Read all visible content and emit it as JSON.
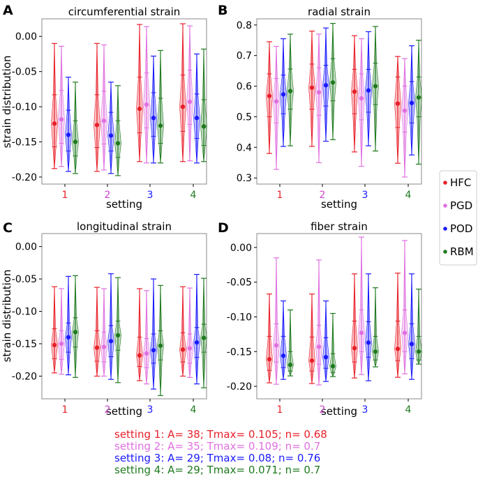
{
  "settings": [
    "1",
    "2",
    "3",
    "4"
  ],
  "methods": [
    "HFC",
    "PGD",
    "POD",
    "RBM"
  ],
  "colors": {
    "HFC": "#e8202a",
    "PGD": "#e070e0",
    "POD": "#1a1aff",
    "RBM": "#1f7a1f",
    "settings": [
      "#e8202a",
      "#cc44cc",
      "#1a1aff",
      "#1f7a1f"
    ]
  },
  "xlabel": "setting",
  "ylabel": "strain distribution",
  "legend": {
    "placement": "right",
    "entries": [
      "HFC",
      "PGD",
      "POD",
      "RBM"
    ]
  },
  "chart_data": [
    {
      "type": "violin",
      "panel": "A",
      "title": "circumferential strain",
      "ylim": [
        -0.21,
        0.025
      ],
      "yticks": [
        0.0,
        -0.05,
        -0.1,
        -0.15,
        -0.2
      ],
      "ytick_labels": [
        "0.00",
        "-0.05",
        "-0.10",
        "-0.15",
        "-0.20"
      ],
      "series": [
        {
          "name": "HFC",
          "median": [
            -0.124,
            -0.126,
            -0.103,
            -0.1
          ],
          "min": [
            -0.188,
            -0.192,
            -0.178,
            -0.178
          ],
          "max": [
            -0.01,
            -0.01,
            0.017,
            0.018
          ],
          "q1": [
            -0.157,
            -0.158,
            -0.137,
            -0.135
          ],
          "q3": [
            -0.083,
            -0.083,
            -0.058,
            -0.055
          ]
        },
        {
          "name": "PGD",
          "median": [
            -0.118,
            -0.12,
            -0.097,
            -0.093
          ],
          "min": [
            -0.185,
            -0.19,
            -0.18,
            -0.177
          ],
          "max": [
            -0.014,
            -0.012,
            0.014,
            0.015
          ],
          "q1": [
            -0.152,
            -0.153,
            -0.13,
            -0.125
          ],
          "q3": [
            -0.077,
            -0.078,
            -0.052,
            -0.048
          ]
        },
        {
          "name": "POD",
          "median": [
            -0.14,
            -0.141,
            -0.116,
            -0.116
          ],
          "min": [
            -0.192,
            -0.195,
            -0.18,
            -0.18
          ],
          "max": [
            -0.058,
            -0.065,
            -0.028,
            -0.025
          ],
          "q1": [
            -0.163,
            -0.163,
            -0.142,
            -0.145
          ],
          "q3": [
            -0.105,
            -0.108,
            -0.08,
            -0.082
          ]
        },
        {
          "name": "RBM",
          "median": [
            -0.15,
            -0.152,
            -0.127,
            -0.128
          ],
          "min": [
            -0.195,
            -0.198,
            -0.18,
            -0.178
          ],
          "max": [
            -0.065,
            -0.07,
            -0.02,
            -0.018
          ],
          "q1": [
            -0.17,
            -0.172,
            -0.152,
            -0.155
          ],
          "q3": [
            -0.12,
            -0.12,
            -0.088,
            -0.09
          ]
        }
      ]
    },
    {
      "type": "violin",
      "panel": "B",
      "title": "radial strain",
      "ylim": [
        0.28,
        0.82
      ],
      "yticks": [
        0.8,
        0.7,
        0.6,
        0.5,
        0.4,
        0.3
      ],
      "ytick_labels": [
        "0.8",
        "0.7",
        "0.6",
        "0.5",
        "0.4",
        "0.3"
      ],
      "series": [
        {
          "name": "HFC",
          "median": [
            0.568,
            0.595,
            0.582,
            0.543
          ],
          "min": [
            0.38,
            0.403,
            0.385,
            0.348
          ],
          "max": [
            0.745,
            0.78,
            0.765,
            0.697
          ],
          "q1": [
            0.5,
            0.525,
            0.51,
            0.465
          ],
          "q3": [
            0.64,
            0.672,
            0.655,
            0.63
          ]
        },
        {
          "name": "PGD",
          "median": [
            0.55,
            0.58,
            0.56,
            0.52
          ],
          "min": [
            0.328,
            0.35,
            0.338,
            0.303
          ],
          "max": [
            0.73,
            0.77,
            0.755,
            0.69
          ],
          "q1": [
            0.48,
            0.505,
            0.49,
            0.45
          ],
          "q3": [
            0.625,
            0.66,
            0.64,
            0.6
          ]
        },
        {
          "name": "POD",
          "median": [
            0.573,
            0.603,
            0.586,
            0.545
          ],
          "min": [
            0.403,
            0.42,
            0.405,
            0.375
          ],
          "max": [
            0.755,
            0.79,
            0.778,
            0.732
          ],
          "q1": [
            0.51,
            0.535,
            0.515,
            0.48
          ],
          "q3": [
            0.636,
            0.668,
            0.655,
            0.615
          ]
        },
        {
          "name": "RBM",
          "median": [
            0.584,
            0.612,
            0.6,
            0.563
          ],
          "min": [
            0.405,
            0.425,
            0.388,
            0.345
          ],
          "max": [
            0.77,
            0.805,
            0.795,
            0.75
          ],
          "q1": [
            0.525,
            0.552,
            0.54,
            0.5
          ],
          "q3": [
            0.656,
            0.69,
            0.675,
            0.63
          ]
        }
      ]
    },
    {
      "type": "violin",
      "panel": "C",
      "title": "longitudinal strain",
      "ylim": [
        -0.235,
        0.02
      ],
      "yticks": [
        0.0,
        -0.05,
        -0.1,
        -0.15,
        -0.2
      ],
      "ytick_labels": [
        "0.00",
        "-0.05",
        "-0.10",
        "-0.15",
        "-0.20"
      ],
      "series": [
        {
          "name": "HFC",
          "median": [
            -0.152,
            -0.156,
            -0.168,
            -0.159
          ],
          "min": [
            -0.195,
            -0.2,
            -0.207,
            -0.2
          ],
          "max": [
            -0.062,
            -0.063,
            -0.065,
            -0.062
          ],
          "q1": [
            -0.173,
            -0.177,
            -0.185,
            -0.178
          ],
          "q3": [
            -0.127,
            -0.13,
            -0.14,
            -0.133
          ]
        },
        {
          "name": "PGD",
          "median": [
            -0.15,
            -0.155,
            -0.165,
            -0.157
          ],
          "min": [
            -0.197,
            -0.2,
            -0.212,
            -0.202
          ],
          "max": [
            -0.065,
            -0.065,
            -0.068,
            -0.064
          ],
          "q1": [
            -0.174,
            -0.178,
            -0.187,
            -0.18
          ],
          "q3": [
            -0.13,
            -0.132,
            -0.142,
            -0.135
          ]
        },
        {
          "name": "POD",
          "median": [
            -0.14,
            -0.146,
            -0.16,
            -0.148
          ],
          "min": [
            -0.198,
            -0.205,
            -0.22,
            -0.212
          ],
          "max": [
            -0.046,
            -0.042,
            -0.05,
            -0.043
          ],
          "q1": [
            -0.163,
            -0.17,
            -0.18,
            -0.171
          ],
          "q3": [
            -0.118,
            -0.122,
            -0.135,
            -0.125
          ]
        },
        {
          "name": "RBM",
          "median": [
            -0.132,
            -0.137,
            -0.153,
            -0.141
          ],
          "min": [
            -0.202,
            -0.21,
            -0.23,
            -0.218
          ],
          "max": [
            -0.045,
            -0.048,
            -0.06,
            -0.049
          ],
          "q1": [
            -0.155,
            -0.16,
            -0.175,
            -0.163
          ],
          "q3": [
            -0.11,
            -0.115,
            -0.13,
            -0.12
          ]
        }
      ]
    },
    {
      "type": "violin",
      "panel": "D",
      "title": "fiber strain",
      "ylim": [
        -0.218,
        0.02
      ],
      "yticks": [
        0.0,
        -0.05,
        -0.1,
        -0.15,
        -0.2
      ],
      "ytick_labels": [
        "0.00",
        "-0.05",
        "-0.10",
        "-0.15",
        "-0.20"
      ],
      "series": [
        {
          "name": "HFC",
          "median": [
            -0.161,
            -0.163,
            -0.145,
            -0.146
          ],
          "min": [
            -0.195,
            -0.196,
            -0.188,
            -0.187
          ],
          "max": [
            -0.067,
            -0.067,
            -0.038,
            -0.037
          ],
          "q1": [
            -0.177,
            -0.178,
            -0.165,
            -0.163
          ],
          "q3": [
            -0.128,
            -0.129,
            -0.106,
            -0.106
          ]
        },
        {
          "name": "PGD",
          "median": [
            -0.141,
            -0.143,
            -0.123,
            -0.123
          ],
          "min": [
            -0.197,
            -0.198,
            -0.183,
            -0.182
          ],
          "max": [
            -0.015,
            -0.018,
            0.015,
            0.01
          ],
          "q1": [
            -0.165,
            -0.168,
            -0.15,
            -0.15
          ],
          "q3": [
            -0.11,
            -0.112,
            -0.09,
            -0.09
          ]
        },
        {
          "name": "POD",
          "median": [
            -0.156,
            -0.158,
            -0.137,
            -0.139
          ],
          "min": [
            -0.19,
            -0.193,
            -0.192,
            -0.19
          ],
          "max": [
            -0.077,
            -0.077,
            -0.038,
            -0.038
          ],
          "q1": [
            -0.173,
            -0.174,
            -0.158,
            -0.16
          ],
          "q3": [
            -0.128,
            -0.13,
            -0.107,
            -0.11
          ]
        },
        {
          "name": "RBM",
          "median": [
            -0.169,
            -0.171,
            -0.15,
            -0.15
          ],
          "min": [
            -0.185,
            -0.186,
            -0.172,
            -0.168
          ],
          "max": [
            -0.09,
            -0.095,
            -0.058,
            -0.06
          ],
          "q1": [
            -0.178,
            -0.18,
            -0.162,
            -0.162
          ],
          "q3": [
            -0.15,
            -0.153,
            -0.128,
            -0.128
          ]
        }
      ]
    }
  ],
  "caption": [
    "setting 1:  A= 38; Tmax= 0.105; n= 0.68",
    "setting 2:  A= 35; Tmax= 0.109; n= 0.7",
    "setting 3:  A= 29; Tmax= 0.08; n= 0.76",
    "setting 4:  A= 29; Tmax= 0.071; n= 0.7"
  ],
  "caption_colors": [
    "#e8202a",
    "#e070e0",
    "#1a1aff",
    "#1f7a1f"
  ]
}
